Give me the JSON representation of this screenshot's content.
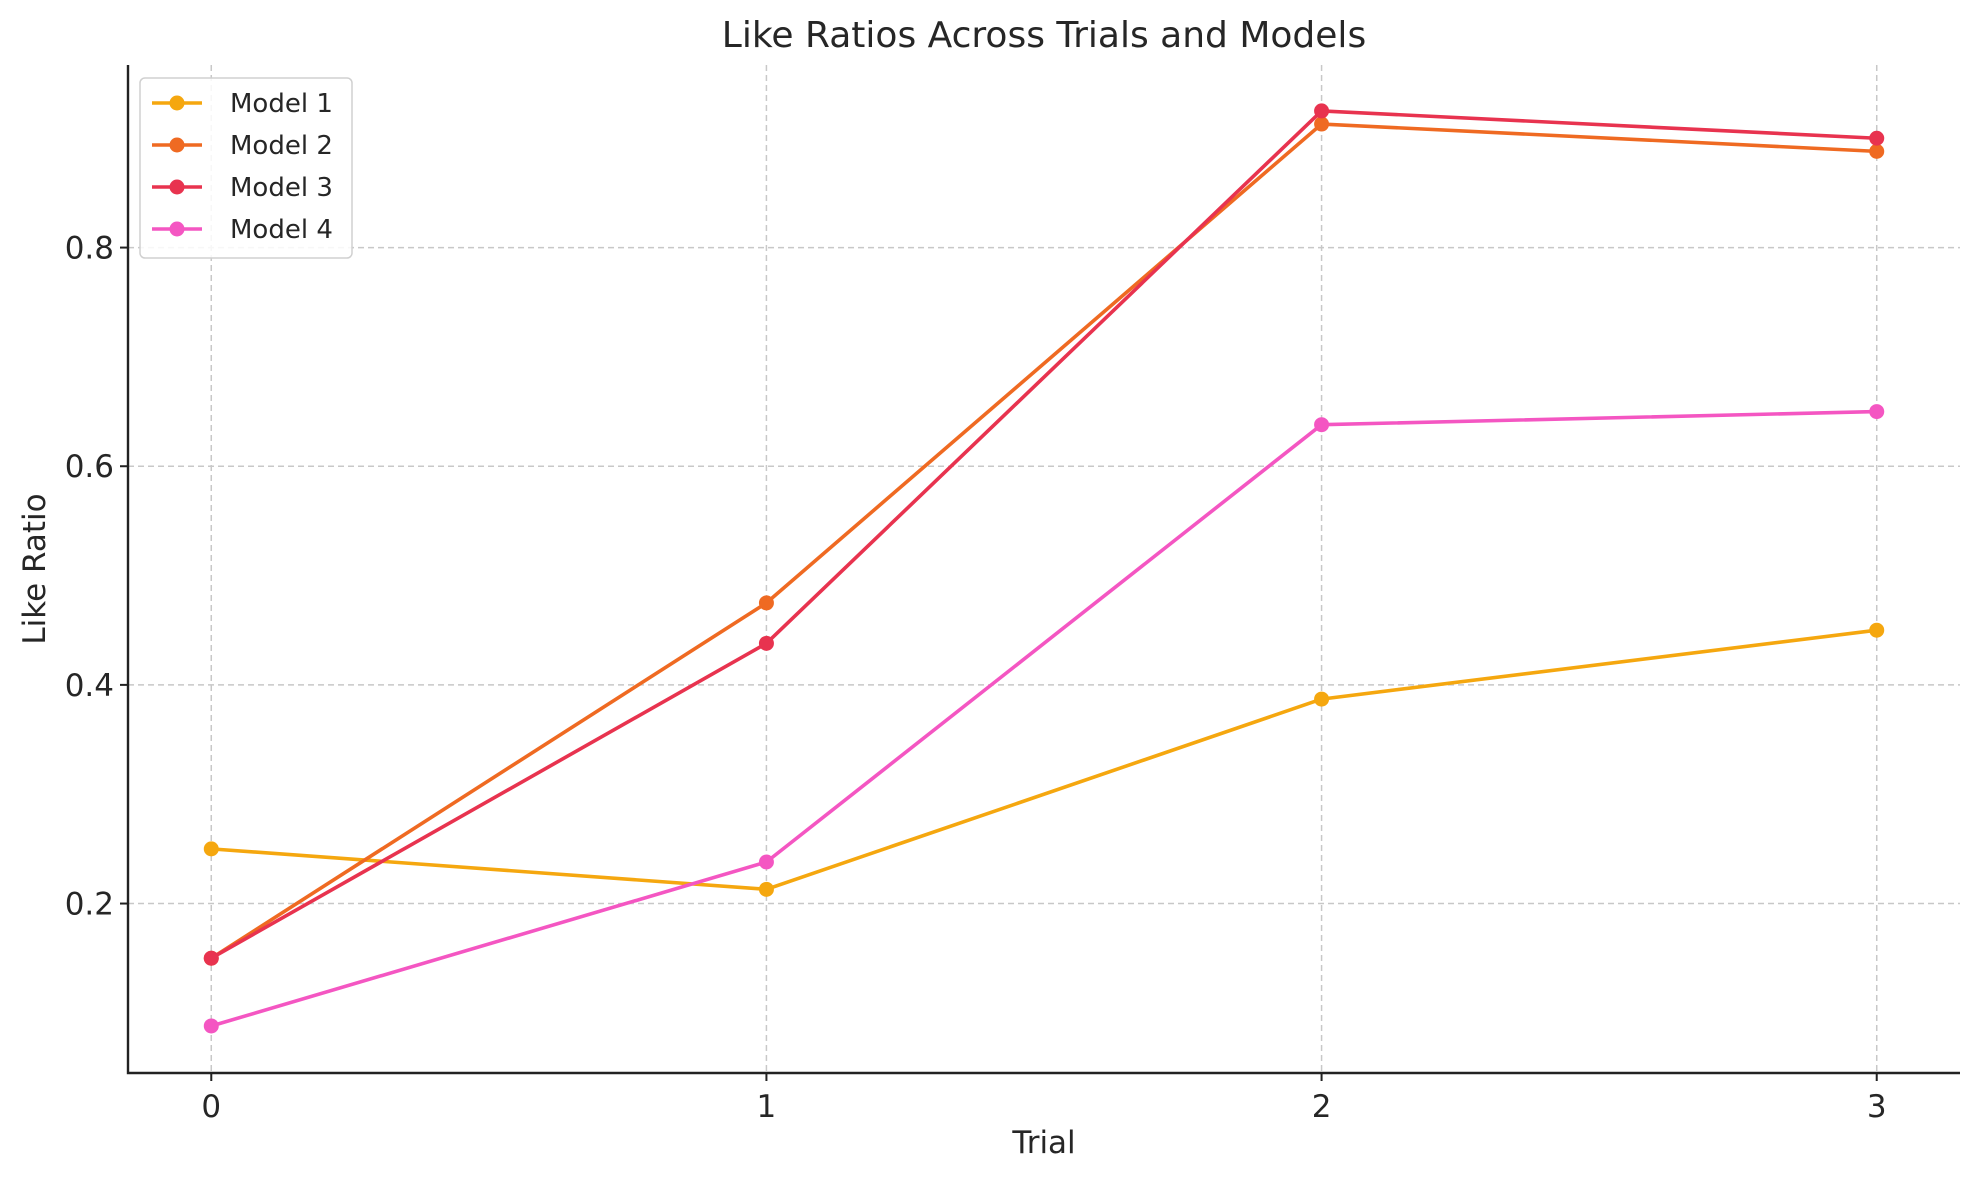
{
  "chart_data": {
    "type": "line",
    "title": "Like Ratios Across Trials and Models",
    "xlabel": "Trial",
    "ylabel": "Like Ratio",
    "x": [
      0,
      1,
      2,
      3
    ],
    "xlim": [
      -0.15,
      3.15
    ],
    "ylim": [
      0.045,
      0.967
    ],
    "xticks": [
      0,
      1,
      2,
      3
    ],
    "yticks": [
      0.2,
      0.4,
      0.6,
      0.8
    ],
    "ytick_labels": [
      "0.2",
      "0.4",
      "0.6",
      "0.8"
    ],
    "grid": true,
    "legend_position": "top-left",
    "series": [
      {
        "name": "Model 1",
        "color": "#f5a70f",
        "values": [
          0.25,
          0.213,
          0.387,
          0.45
        ]
      },
      {
        "name": "Model 2",
        "color": "#ef6a22",
        "values": [
          0.15,
          0.475,
          0.913,
          0.888
        ]
      },
      {
        "name": "Model 3",
        "color": "#e8334f",
        "values": [
          0.15,
          0.438,
          0.925,
          0.9
        ]
      },
      {
        "name": "Model 4",
        "color": "#f456c2",
        "values": [
          0.088,
          0.238,
          0.638,
          0.65
        ]
      }
    ]
  }
}
